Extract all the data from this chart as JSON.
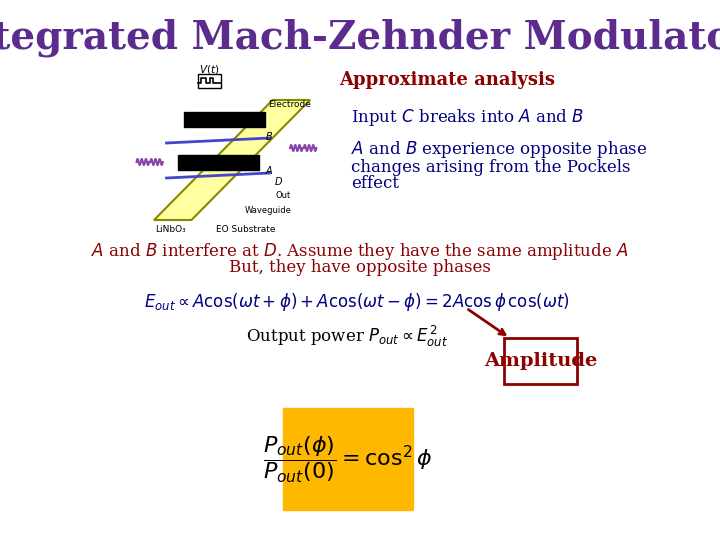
{
  "title": "Integrated Mach-Zehnder Modulators",
  "title_color": "#5B2C8D",
  "title_fontsize": 28,
  "bg_color": "#FFFFFF",
  "approx_label": "Approximate analysis",
  "approx_color": "#8B0000",
  "approx_fontsize": 13,
  "input_c_text": "Input $\\mathit{C}$ breaks into $\\mathit{A}$ and $\\mathit{B}$",
  "input_c_color": "#000080",
  "input_c_fontsize": 12,
  "ab_text1": "$\\mathit{A}$ and $\\mathit{B}$ experience opposite phase",
  "ab_text2": "changes arising from the Pockels",
  "ab_text3": "effect",
  "ab_color": "#000080",
  "ab_fontsize": 12,
  "interfere_line1": "$\\mathit{A}$ and $\\mathit{B}$ interfere at $\\mathit{D}$. Assume they have the same amplitude $\\mathit{A}$",
  "interfere_line2": "But, they have opposite phases",
  "interfere_color": "#8B0000",
  "interfere_fontsize": 12,
  "eout_formula": "$E_{out} \\propto A\\cos(\\omega t + \\phi) + A\\cos(\\omega t - \\phi) = 2A\\cos\\phi\\, \\cos(\\omega t)$",
  "eout_color": "#000080",
  "eout_fontsize": 12,
  "power_text": "Output power $P_{out} \\propto E_{out}^{\\,2}$",
  "power_color": "#000000",
  "power_fontsize": 12,
  "amplitude_label": "Amplitude",
  "amplitude_color": "#8B0000",
  "amplitude_fontsize": 14,
  "formula_box_color": "#FFB800",
  "formula_latex": "$\\dfrac{P_{out}(\\phi)}{P_{out}(0)} = \\cos^2\\phi$",
  "formula_fontsize": 16,
  "formula_color": "#000000"
}
